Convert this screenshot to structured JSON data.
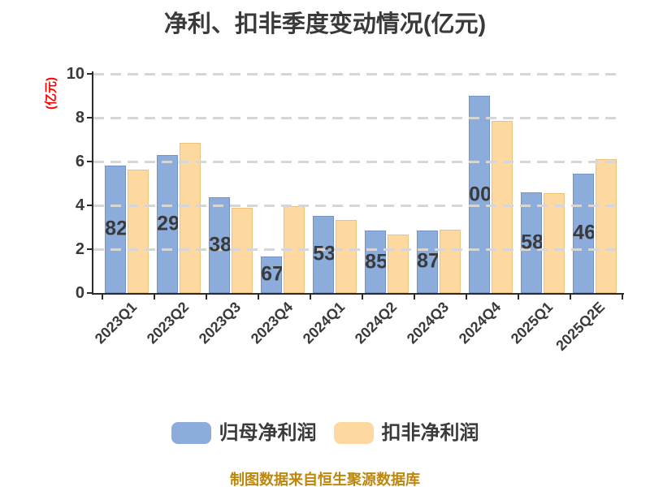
{
  "title": "净利、扣非季度变动情况(亿元)",
  "y_axis": {
    "label": "(亿元)",
    "label_color": "#ff0000",
    "ticks": [
      0,
      2,
      4,
      6,
      8,
      10
    ]
  },
  "legend": [
    {
      "label": "归母净利润",
      "color": "#8cacdc"
    },
    {
      "label": "扣非净利润",
      "color": "#fdd9a0"
    }
  ],
  "caption": "制图数据来自恒生聚源数据库",
  "colors": {
    "bar_blue": "#8cacdc",
    "bar_blue_border": "#7493c8",
    "bar_yellow": "#fdd9a0",
    "bar_yellow_border": "#edc07e",
    "gridline": "#d6d6d6",
    "axis": "#2b2b2b",
    "text": "#3a3a3a",
    "caption": "#be860b",
    "y_unit_label": "#ff0000"
  },
  "chart_data": {
    "type": "bar",
    "categories": [
      "2023Q1",
      "2023Q2",
      "2023Q3",
      "2023Q4",
      "2024Q1",
      "2024Q2",
      "2024Q3",
      "2024Q4",
      "2025Q1",
      "2025Q2E"
    ],
    "series": [
      {
        "name": "归母净利润",
        "color": "#8cacdc",
        "values": [
          5.82,
          6.29,
          4.38,
          1.67,
          3.53,
          2.85,
          2.87,
          9.0,
          4.58,
          5.46
        ]
      },
      {
        "name": "扣非净利润",
        "color": "#fdd9a0",
        "values": [
          5.63,
          6.85,
          3.88,
          3.95,
          3.32,
          2.65,
          2.88,
          7.87,
          4.55,
          6.1
        ]
      }
    ],
    "title": "净利、扣非季度变动情况(亿元)",
    "xlabel": "",
    "ylabel": "(亿元)",
    "ylim": [
      0,
      10
    ],
    "yticks": [
      0,
      2,
      4,
      6,
      8,
      10
    ],
    "grid": "horizontal dashed, drawn over bars",
    "legend_position": "bottom",
    "bar_labels": {
      "labeled_series": "归母净利润",
      "format": "0.00",
      "note": "labels are clipped to bar width so only the last two digits are visible",
      "visible_fragments": [
        "82",
        "29",
        "38",
        "67",
        "53",
        "85",
        "87",
        "00",
        "58",
        "46"
      ]
    }
  }
}
